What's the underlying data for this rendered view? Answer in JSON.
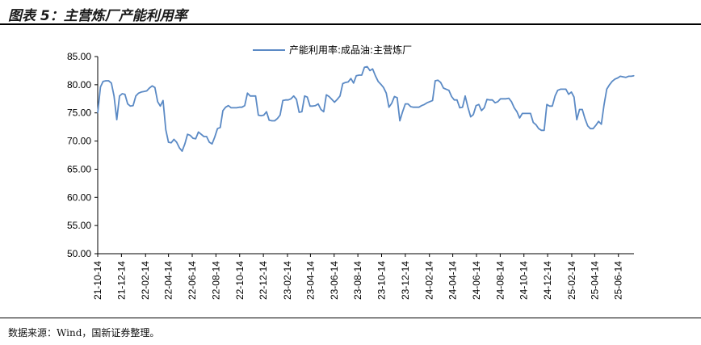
{
  "figure": {
    "title": "图表 5：主营炼厂产能利用率",
    "source": "数据来源：Wind，国新证券整理。"
  },
  "chart_data": {
    "type": "line",
    "title": "",
    "xlabel": "",
    "ylabel": "",
    "ylim": [
      50,
      85
    ],
    "yticks": [
      "50.00",
      "55.00",
      "60.00",
      "65.00",
      "70.00",
      "75.00",
      "80.00",
      "85.00"
    ],
    "xticks": [
      "21-10-14",
      "21-12-14",
      "22-02-14",
      "22-04-14",
      "22-06-14",
      "22-08-14",
      "22-10-14",
      "22-12-14",
      "23-02-14",
      "23-04-14",
      "23-06-14",
      "23-08-14",
      "23-10-14",
      "23-12-14",
      "24-02-14",
      "24-04-14",
      "24-06-14",
      "24-08-14",
      "24-10-14",
      "24-12-14",
      "25-02-14",
      "25-04-14",
      "25-06-14"
    ],
    "x_range": [
      "2021-10-14",
      "2025-07-24"
    ],
    "legend_position": "top-center",
    "grid": false,
    "series": [
      {
        "name": "产能利用率:成品油:主营炼厂",
        "color": "#5b8ac5",
        "points": [
          [
            "2021-10-14",
            75.0
          ],
          [
            "2021-10-21",
            79.6
          ],
          [
            "2021-10-28",
            80.6
          ],
          [
            "2021-11-04",
            80.7
          ],
          [
            "2021-11-11",
            80.7
          ],
          [
            "2021-11-18",
            80.3
          ],
          [
            "2021-11-25",
            78.0
          ],
          [
            "2021-12-02",
            73.8
          ],
          [
            "2021-12-09",
            78.0
          ],
          [
            "2021-12-16",
            78.4
          ],
          [
            "2021-12-23",
            78.3
          ],
          [
            "2021-12-30",
            76.6
          ],
          [
            "2022-01-06",
            76.2
          ],
          [
            "2022-01-13",
            76.3
          ],
          [
            "2022-01-20",
            78.0
          ],
          [
            "2022-01-27",
            78.5
          ],
          [
            "2022-02-03",
            78.7
          ],
          [
            "2022-02-10",
            78.8
          ],
          [
            "2022-02-17",
            78.9
          ],
          [
            "2022-02-24",
            79.4
          ],
          [
            "2022-03-03",
            79.8
          ],
          [
            "2022-03-10",
            79.5
          ],
          [
            "2022-03-17",
            77.0
          ],
          [
            "2022-03-24",
            76.2
          ],
          [
            "2022-03-31",
            77.2
          ],
          [
            "2022-04-07",
            72.0
          ],
          [
            "2022-04-14",
            69.8
          ],
          [
            "2022-04-21",
            69.7
          ],
          [
            "2022-04-28",
            70.3
          ],
          [
            "2022-05-05",
            69.8
          ],
          [
            "2022-05-12",
            68.8
          ],
          [
            "2022-05-19",
            68.2
          ],
          [
            "2022-05-26",
            69.5
          ],
          [
            "2022-06-02",
            71.2
          ],
          [
            "2022-06-09",
            71.0
          ],
          [
            "2022-06-16",
            70.5
          ],
          [
            "2022-06-23",
            70.4
          ],
          [
            "2022-06-30",
            71.6
          ],
          [
            "2022-07-07",
            71.2
          ],
          [
            "2022-07-14",
            70.8
          ],
          [
            "2022-07-21",
            70.8
          ],
          [
            "2022-07-28",
            69.8
          ],
          [
            "2022-08-04",
            69.5
          ],
          [
            "2022-08-11",
            70.7
          ],
          [
            "2022-08-18",
            72.2
          ],
          [
            "2022-08-25",
            72.4
          ],
          [
            "2022-09-01",
            75.4
          ],
          [
            "2022-09-08",
            76.0
          ],
          [
            "2022-09-15",
            76.3
          ],
          [
            "2022-09-22",
            75.9
          ],
          [
            "2022-09-29",
            75.9
          ],
          [
            "2022-10-06",
            75.9
          ],
          [
            "2022-10-13",
            76.0
          ],
          [
            "2022-10-20",
            76.0
          ],
          [
            "2022-10-27",
            76.3
          ],
          [
            "2022-11-03",
            78.5
          ],
          [
            "2022-11-10",
            78.0
          ],
          [
            "2022-11-17",
            78.0
          ],
          [
            "2022-11-24",
            78.0
          ],
          [
            "2022-12-01",
            74.6
          ],
          [
            "2022-12-08",
            74.5
          ],
          [
            "2022-12-15",
            74.6
          ],
          [
            "2022-12-22",
            75.2
          ],
          [
            "2022-12-29",
            73.7
          ],
          [
            "2023-01-05",
            73.6
          ],
          [
            "2023-01-12",
            73.6
          ],
          [
            "2023-01-19",
            74.0
          ],
          [
            "2023-01-26",
            74.6
          ],
          [
            "2023-02-02",
            77.2
          ],
          [
            "2023-02-09",
            77.3
          ],
          [
            "2023-02-16",
            77.3
          ],
          [
            "2023-02-23",
            77.5
          ],
          [
            "2023-03-02",
            78.0
          ],
          [
            "2023-03-09",
            77.4
          ],
          [
            "2023-03-16",
            75.1
          ],
          [
            "2023-03-23",
            75.2
          ],
          [
            "2023-03-30",
            78.0
          ],
          [
            "2023-04-06",
            77.8
          ],
          [
            "2023-04-13",
            76.2
          ],
          [
            "2023-04-20",
            76.2
          ],
          [
            "2023-04-27",
            76.3
          ],
          [
            "2023-05-04",
            76.6
          ],
          [
            "2023-05-11",
            75.6
          ],
          [
            "2023-05-18",
            75.2
          ],
          [
            "2023-05-25",
            78.2
          ],
          [
            "2023-06-01",
            77.9
          ],
          [
            "2023-06-08",
            77.4
          ],
          [
            "2023-06-15",
            76.9
          ],
          [
            "2023-06-22",
            77.4
          ],
          [
            "2023-06-29",
            78.0
          ],
          [
            "2023-07-06",
            80.2
          ],
          [
            "2023-07-13",
            80.4
          ],
          [
            "2023-07-20",
            80.5
          ],
          [
            "2023-07-27",
            81.1
          ],
          [
            "2023-08-03",
            80.3
          ],
          [
            "2023-08-10",
            81.6
          ],
          [
            "2023-08-17",
            81.7
          ],
          [
            "2023-08-24",
            81.7
          ],
          [
            "2023-08-31",
            83.1
          ],
          [
            "2023-09-07",
            83.2
          ],
          [
            "2023-09-14",
            82.5
          ],
          [
            "2023-09-21",
            82.8
          ],
          [
            "2023-09-28",
            81.6
          ],
          [
            "2023-10-05",
            80.6
          ],
          [
            "2023-10-12",
            80.1
          ],
          [
            "2023-10-19",
            79.5
          ],
          [
            "2023-10-26",
            78.5
          ],
          [
            "2023-11-02",
            76.0
          ],
          [
            "2023-11-09",
            76.7
          ],
          [
            "2023-11-16",
            77.9
          ],
          [
            "2023-11-23",
            77.7
          ],
          [
            "2023-11-30",
            73.6
          ],
          [
            "2023-12-07",
            75.2
          ],
          [
            "2023-12-14",
            76.6
          ],
          [
            "2023-12-21",
            76.6
          ],
          [
            "2023-12-28",
            76.1
          ],
          [
            "2024-01-04",
            76.0
          ],
          [
            "2024-01-11",
            76.0
          ],
          [
            "2024-01-18",
            76.0
          ],
          [
            "2024-01-25",
            76.3
          ],
          [
            "2024-02-01",
            76.5
          ],
          [
            "2024-02-08",
            76.8
          ],
          [
            "2024-02-15",
            77.0
          ],
          [
            "2024-02-22",
            77.2
          ],
          [
            "2024-02-29",
            80.7
          ],
          [
            "2024-03-07",
            80.8
          ],
          [
            "2024-03-14",
            80.4
          ],
          [
            "2024-03-21",
            79.4
          ],
          [
            "2024-03-28",
            79.2
          ],
          [
            "2024-04-04",
            79.0
          ],
          [
            "2024-04-11",
            77.9
          ],
          [
            "2024-04-18",
            77.3
          ],
          [
            "2024-04-25",
            77.3
          ],
          [
            "2024-05-02",
            75.9
          ],
          [
            "2024-05-09",
            76.0
          ],
          [
            "2024-05-16",
            78.0
          ],
          [
            "2024-05-23",
            76.0
          ],
          [
            "2024-05-30",
            74.3
          ],
          [
            "2024-06-06",
            74.7
          ],
          [
            "2024-06-13",
            76.3
          ],
          [
            "2024-06-20",
            76.5
          ],
          [
            "2024-06-27",
            75.4
          ],
          [
            "2024-07-04",
            75.9
          ],
          [
            "2024-07-11",
            77.4
          ],
          [
            "2024-07-18",
            77.3
          ],
          [
            "2024-07-25",
            77.3
          ],
          [
            "2024-08-01",
            76.8
          ],
          [
            "2024-08-08",
            77.0
          ],
          [
            "2024-08-15",
            77.5
          ],
          [
            "2024-08-22",
            77.5
          ],
          [
            "2024-08-29",
            77.5
          ],
          [
            "2024-09-05",
            77.6
          ],
          [
            "2024-09-12",
            77.0
          ],
          [
            "2024-09-19",
            75.9
          ],
          [
            "2024-09-26",
            75.2
          ],
          [
            "2024-10-03",
            74.1
          ],
          [
            "2024-10-10",
            74.9
          ],
          [
            "2024-10-17",
            74.9
          ],
          [
            "2024-10-24",
            74.9
          ],
          [
            "2024-10-31",
            74.9
          ],
          [
            "2024-11-07",
            73.3
          ],
          [
            "2024-11-14",
            72.9
          ],
          [
            "2024-11-21",
            72.2
          ],
          [
            "2024-11-28",
            71.9
          ],
          [
            "2024-12-05",
            71.9
          ],
          [
            "2024-12-12",
            76.5
          ],
          [
            "2024-12-19",
            76.2
          ],
          [
            "2024-12-26",
            76.2
          ],
          [
            "2025-01-02",
            78.0
          ],
          [
            "2025-01-09",
            79.0
          ],
          [
            "2025-01-16",
            79.2
          ],
          [
            "2025-01-23",
            79.2
          ],
          [
            "2025-01-30",
            79.2
          ],
          [
            "2025-02-06",
            78.3
          ],
          [
            "2025-02-13",
            78.7
          ],
          [
            "2025-02-20",
            77.8
          ],
          [
            "2025-02-27",
            73.8
          ],
          [
            "2025-03-06",
            75.6
          ],
          [
            "2025-03-13",
            75.6
          ],
          [
            "2025-03-20",
            74.0
          ],
          [
            "2025-03-27",
            72.7
          ],
          [
            "2025-04-03",
            72.2
          ],
          [
            "2025-04-10",
            72.2
          ],
          [
            "2025-04-17",
            72.8
          ],
          [
            "2025-04-24",
            73.5
          ],
          [
            "2025-05-01",
            73.0
          ],
          [
            "2025-05-08",
            76.4
          ],
          [
            "2025-05-15",
            79.2
          ],
          [
            "2025-05-22",
            80.0
          ],
          [
            "2025-05-29",
            80.6
          ],
          [
            "2025-06-05",
            81.0
          ],
          [
            "2025-06-12",
            81.2
          ],
          [
            "2025-06-19",
            81.5
          ],
          [
            "2025-06-26",
            81.4
          ],
          [
            "2025-07-03",
            81.3
          ],
          [
            "2025-07-10",
            81.5
          ],
          [
            "2025-07-17",
            81.5
          ],
          [
            "2025-07-24",
            81.6
          ]
        ]
      }
    ]
  }
}
